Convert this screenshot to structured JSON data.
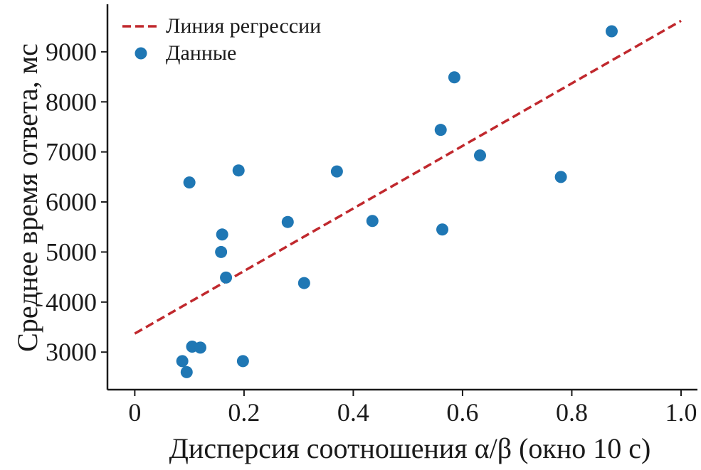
{
  "chart_data": {
    "type": "scatter",
    "title": "",
    "xlabel": "Дисперсия соотношения α/β (окно 10 с)",
    "ylabel": "Среднее время ответа, мс",
    "xlim": [
      -0.05,
      1.03
    ],
    "ylim": [
      2250,
      9950
    ],
    "x_ticks": [
      0,
      0.2,
      0.4,
      0.6,
      0.8,
      1.0
    ],
    "x_tick_labels": [
      "0",
      "0.2",
      "0.4",
      "0.6",
      "0.8",
      "1.0"
    ],
    "y_ticks": [
      3000,
      4000,
      5000,
      6000,
      7000,
      8000,
      9000
    ],
    "y_tick_labels": [
      "3000",
      "4000",
      "5000",
      "6000",
      "7000",
      "8000",
      "9000"
    ],
    "grid": false,
    "legend_position": "top-left",
    "series": [
      {
        "name": "Данные",
        "kind": "scatter",
        "color": "#1f77b4",
        "points": [
          {
            "x": 0.087,
            "y": 2820
          },
          {
            "x": 0.1,
            "y": 6390
          },
          {
            "x": 0.095,
            "y": 2600
          },
          {
            "x": 0.105,
            "y": 3110
          },
          {
            "x": 0.12,
            "y": 3090
          },
          {
            "x": 0.158,
            "y": 5000
          },
          {
            "x": 0.16,
            "y": 5350
          },
          {
            "x": 0.167,
            "y": 4490
          },
          {
            "x": 0.19,
            "y": 6630
          },
          {
            "x": 0.198,
            "y": 2820
          },
          {
            "x": 0.28,
            "y": 5600
          },
          {
            "x": 0.31,
            "y": 4380
          },
          {
            "x": 0.37,
            "y": 6610
          },
          {
            "x": 0.435,
            "y": 5620
          },
          {
            "x": 0.56,
            "y": 7440
          },
          {
            "x": 0.563,
            "y": 5450
          },
          {
            "x": 0.585,
            "y": 8490
          },
          {
            "x": 0.632,
            "y": 6930
          },
          {
            "x": 0.78,
            "y": 6500
          },
          {
            "x": 0.873,
            "y": 9410
          }
        ]
      },
      {
        "name": "Линия регрессии",
        "kind": "line",
        "style": "dashed",
        "color": "#c0282d",
        "points": [
          {
            "x": 0,
            "y": 3370
          },
          {
            "x": 1.0,
            "y": 9620
          }
        ]
      }
    ]
  }
}
